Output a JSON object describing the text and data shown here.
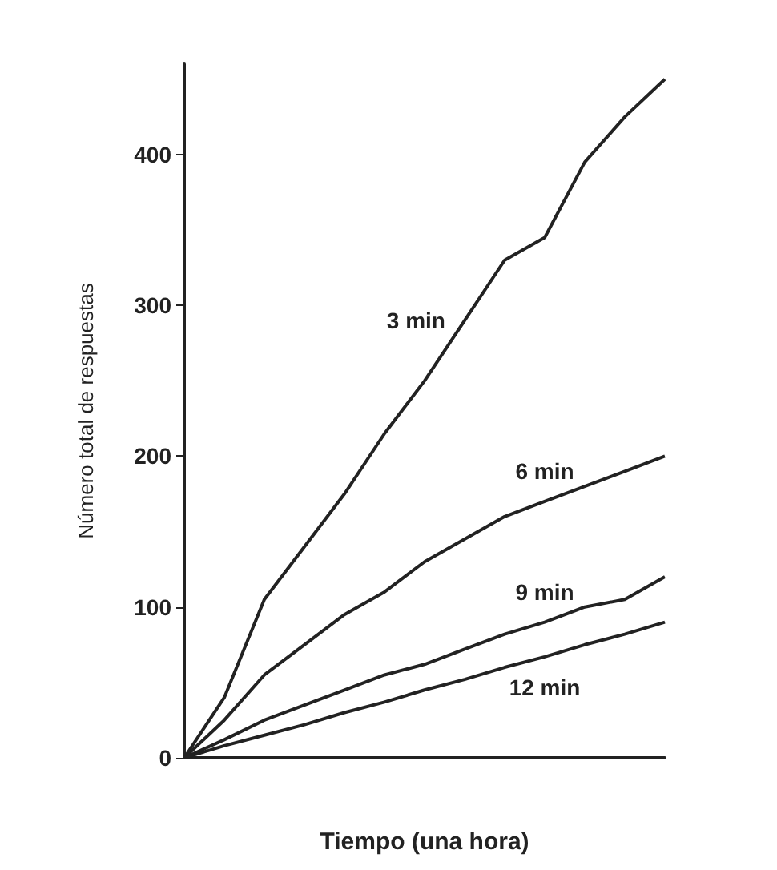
{
  "chart_data": {
    "type": "line",
    "xlabel": "Tiempo (una hora)",
    "ylabel": "Número total de respuestas",
    "categories": [
      null,
      null,
      null,
      null,
      null,
      null,
      null,
      null,
      null,
      null,
      null,
      null,
      null
    ],
    "series": [
      {
        "name": "3 min",
        "color": "#222222",
        "values": [
          0,
          40,
          105,
          140,
          175,
          215,
          250,
          290,
          330,
          345,
          395,
          425,
          450
        ]
      },
      {
        "name": "6 min",
        "color": "#222222",
        "values": [
          0,
          25,
          55,
          75,
          95,
          110,
          130,
          145,
          160,
          170,
          180,
          190,
          200
        ]
      },
      {
        "name": "9 min",
        "color": "#222222",
        "values": [
          0,
          12,
          25,
          35,
          45,
          55,
          62,
          72,
          82,
          90,
          100,
          105,
          120
        ]
      },
      {
        "name": "12 min",
        "color": "#222222",
        "values": [
          0,
          8,
          15,
          22,
          30,
          37,
          45,
          52,
          60,
          67,
          75,
          82,
          90
        ]
      }
    ],
    "ylim": [
      0,
      460
    ],
    "yticks": [
      0,
      100,
      200,
      300,
      400
    ],
    "tick_labels": "y",
    "grid": false,
    "legend": false,
    "marker": "none",
    "line_style": "solid"
  }
}
